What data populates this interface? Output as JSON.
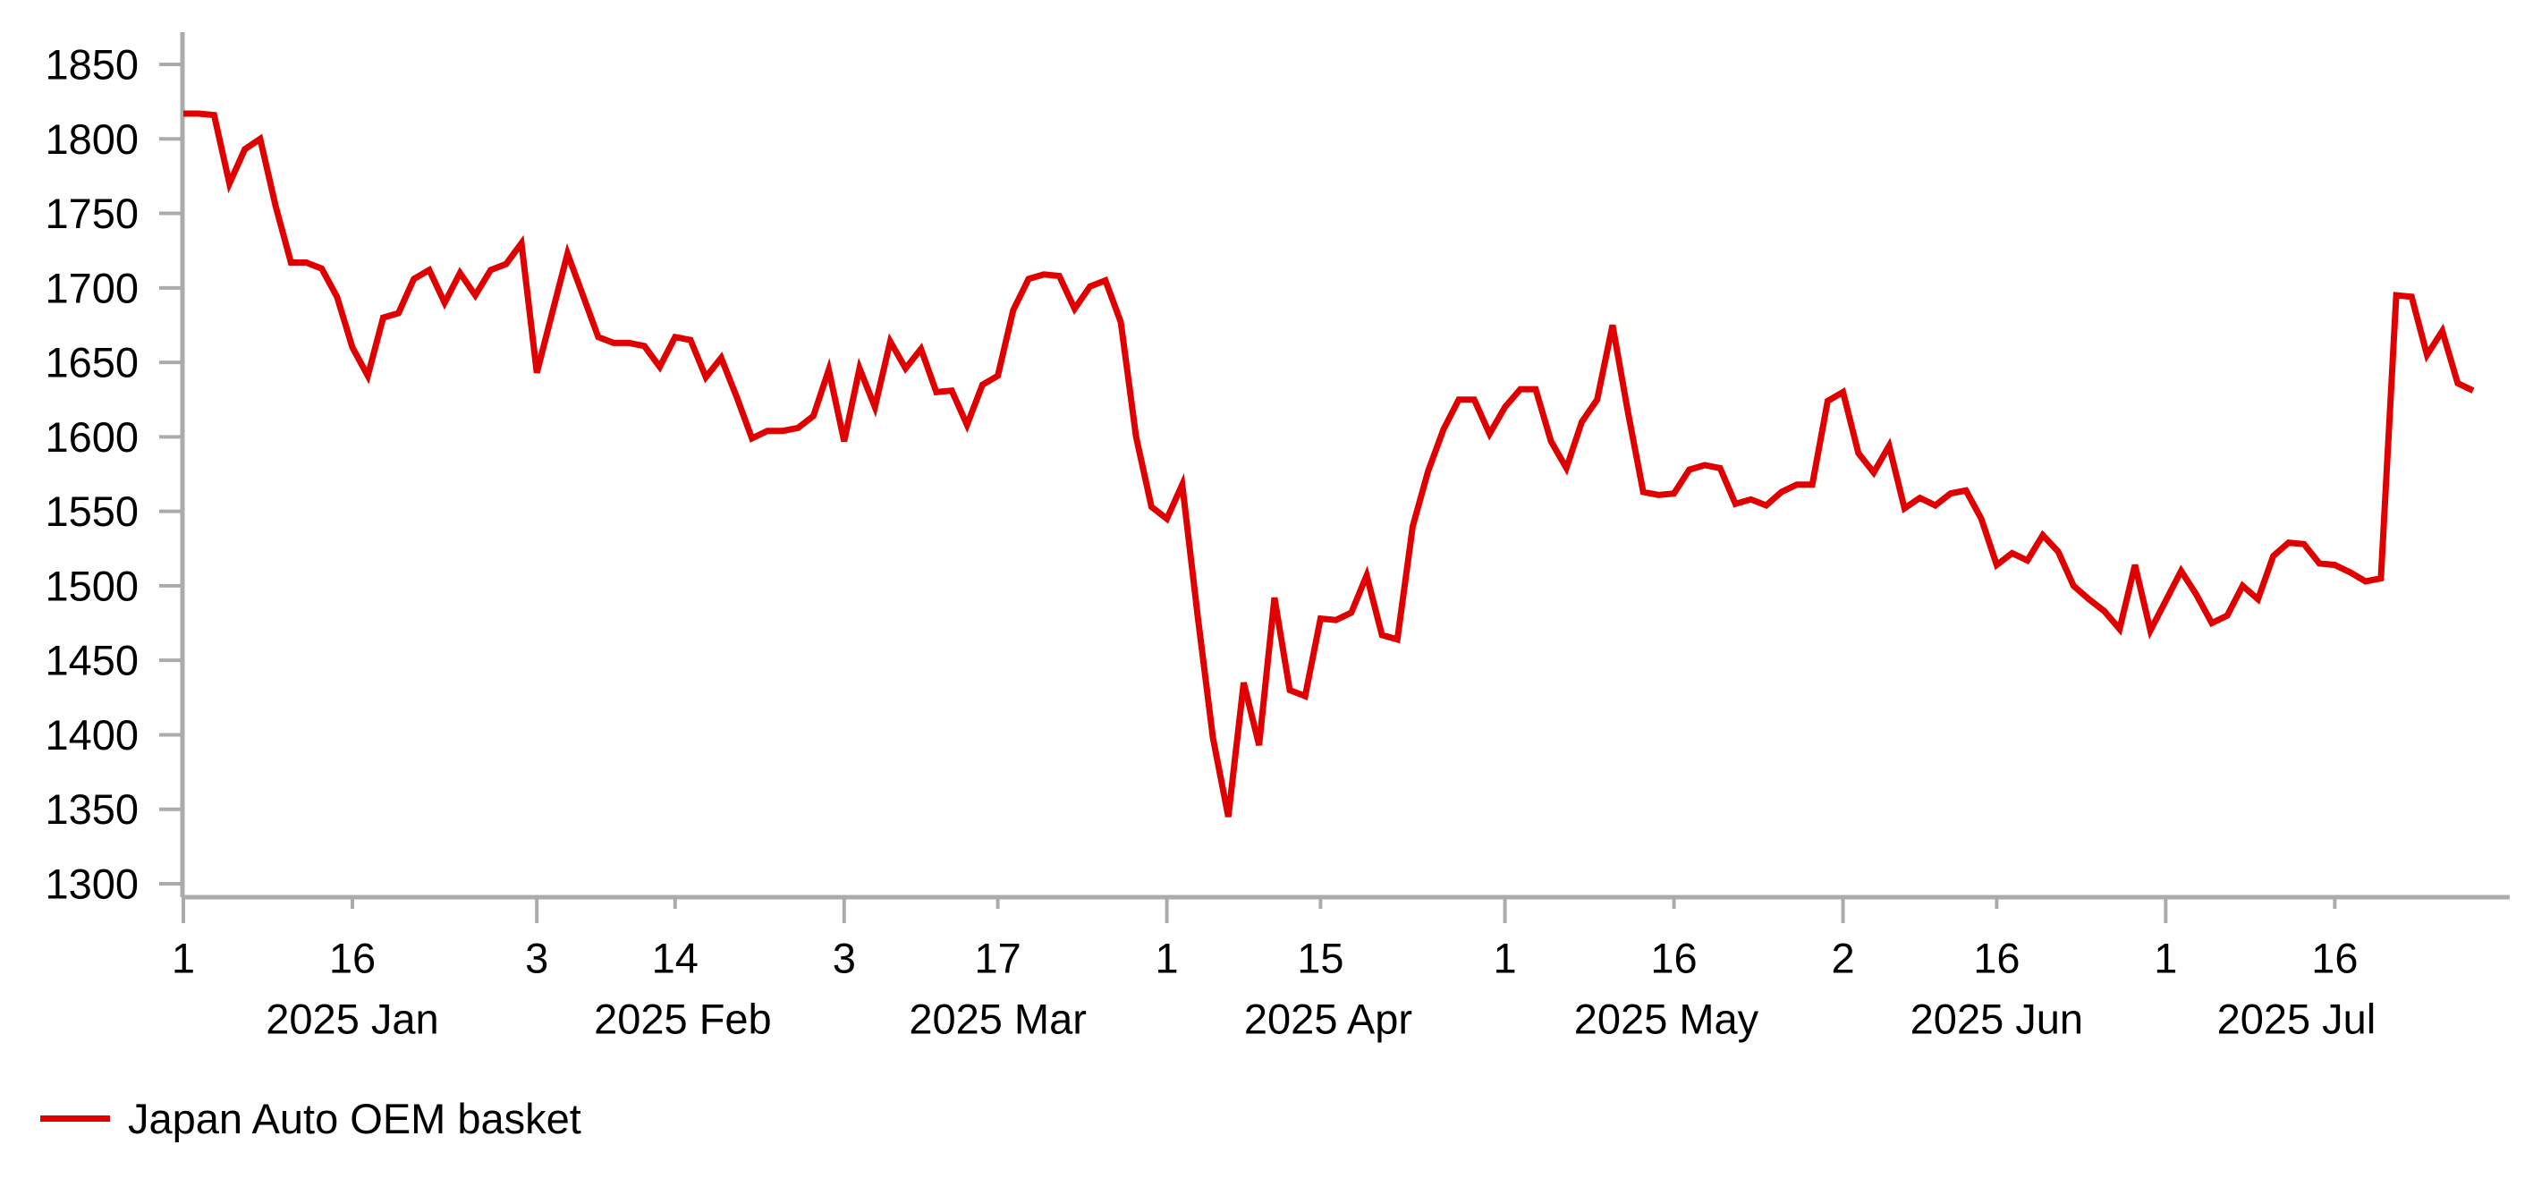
{
  "legend": {
    "label": "Japan Auto OEM basket"
  },
  "chart_data": {
    "type": "line",
    "title": "",
    "grid": false,
    "legend_position": "bottom-left",
    "background": "#FFFFFF",
    "axis_color": "#ABABAB",
    "text_color": "#000000",
    "ylabel": "",
    "xlabel": "",
    "ylim": [
      1300,
      1850
    ],
    "y_ticks": [
      1300,
      1350,
      1400,
      1450,
      1500,
      1550,
      1600,
      1650,
      1700,
      1750,
      1800,
      1850
    ],
    "x_ticks": [
      {
        "label": "1",
        "index": 0,
        "major": true
      },
      {
        "label": "16",
        "index": 11,
        "major": false
      },
      {
        "label": "3",
        "index": 23,
        "major": true
      },
      {
        "label": "14",
        "index": 32,
        "major": false
      },
      {
        "label": "3",
        "index": 43,
        "major": true
      },
      {
        "label": "17",
        "index": 53,
        "major": false
      },
      {
        "label": "1",
        "index": 64,
        "major": true
      },
      {
        "label": "15",
        "index": 74,
        "major": false
      },
      {
        "label": "1",
        "index": 86,
        "major": true
      },
      {
        "label": "16",
        "index": 97,
        "major": false
      },
      {
        "label": "2",
        "index": 108,
        "major": true
      },
      {
        "label": "16",
        "index": 118,
        "major": false
      },
      {
        "label": "1",
        "index": 129,
        "major": true
      },
      {
        "label": "16",
        "index": 140,
        "major": false
      }
    ],
    "x_month_labels": [
      {
        "label": "2025 Jan",
        "center_index": 11
      },
      {
        "label": "2025 Feb",
        "center_index": 32.5
      },
      {
        "label": "2025 Mar",
        "center_index": 53
      },
      {
        "label": "2025 Apr",
        "center_index": 74.5
      },
      {
        "label": "2025 May",
        "center_index": 96.5
      },
      {
        "label": "2025 Jun",
        "center_index": 118
      },
      {
        "label": "2025 Jul",
        "center_index": 137.5
      }
    ],
    "series": [
      {
        "name": "Japan Auto OEM basket",
        "color": "#E00000",
        "dates": [
          "2025-01-01",
          "2025-01-02",
          "2025-01-03",
          "2025-01-06",
          "2025-01-07",
          "2025-01-08",
          "2025-01-09",
          "2025-01-10",
          "2025-01-13",
          "2025-01-14",
          "2025-01-15",
          "2025-01-16",
          "2025-01-17",
          "2025-01-20",
          "2025-01-21",
          "2025-01-22",
          "2025-01-23",
          "2025-01-24",
          "2025-01-27",
          "2025-01-28",
          "2025-01-29",
          "2025-01-30",
          "2025-01-31",
          "2025-02-03",
          "2025-02-04",
          "2025-02-05",
          "2025-02-06",
          "2025-02-07",
          "2025-02-10",
          "2025-02-11",
          "2025-02-12",
          "2025-02-13",
          "2025-02-14",
          "2025-02-17",
          "2025-02-18",
          "2025-02-19",
          "2025-02-20",
          "2025-02-21",
          "2025-02-24",
          "2025-02-25",
          "2025-02-26",
          "2025-02-27",
          "2025-02-28",
          "2025-03-03",
          "2025-03-04",
          "2025-03-05",
          "2025-03-06",
          "2025-03-07",
          "2025-03-10",
          "2025-03-11",
          "2025-03-12",
          "2025-03-13",
          "2025-03-14",
          "2025-03-17",
          "2025-03-18",
          "2025-03-19",
          "2025-03-20",
          "2025-03-21",
          "2025-03-24",
          "2025-03-25",
          "2025-03-26",
          "2025-03-27",
          "2025-03-28",
          "2025-03-31",
          "2025-04-01",
          "2025-04-02",
          "2025-04-03",
          "2025-04-04",
          "2025-04-07",
          "2025-04-08",
          "2025-04-09",
          "2025-04-10",
          "2025-04-11",
          "2025-04-14",
          "2025-04-15",
          "2025-04-16",
          "2025-04-17",
          "2025-04-18",
          "2025-04-21",
          "2025-04-22",
          "2025-04-23",
          "2025-04-24",
          "2025-04-25",
          "2025-04-28",
          "2025-04-29",
          "2025-04-30",
          "2025-05-01",
          "2025-05-02",
          "2025-05-05",
          "2025-05-06",
          "2025-05-07",
          "2025-05-08",
          "2025-05-09",
          "2025-05-12",
          "2025-05-13",
          "2025-05-14",
          "2025-05-15",
          "2025-05-16",
          "2025-05-19",
          "2025-05-20",
          "2025-05-21",
          "2025-05-22",
          "2025-05-23",
          "2025-05-26",
          "2025-05-27",
          "2025-05-28",
          "2025-05-29",
          "2025-05-30",
          "2025-06-02",
          "2025-06-03",
          "2025-06-04",
          "2025-06-05",
          "2025-06-06",
          "2025-06-09",
          "2025-06-10",
          "2025-06-11",
          "2025-06-12",
          "2025-06-13",
          "2025-06-16",
          "2025-06-17",
          "2025-06-18",
          "2025-06-19",
          "2025-06-20",
          "2025-06-23",
          "2025-06-24",
          "2025-06-25",
          "2025-06-26",
          "2025-06-27",
          "2025-06-30",
          "2025-07-01",
          "2025-07-02",
          "2025-07-03",
          "2025-07-04",
          "2025-07-07",
          "2025-07-08",
          "2025-07-09",
          "2025-07-10",
          "2025-07-11",
          "2025-07-14",
          "2025-07-15",
          "2025-07-16",
          "2025-07-17",
          "2025-07-18",
          "2025-07-21",
          "2025-07-22",
          "2025-07-23",
          "2025-07-24",
          "2025-07-25",
          "2025-07-28",
          "2025-07-29"
        ],
        "values": [
          1817,
          1817,
          1816,
          1770,
          1793,
          1800,
          1755,
          1717,
          1717,
          1713,
          1694,
          1660,
          1641,
          1680,
          1683,
          1706,
          1712,
          1690,
          1710,
          1695,
          1712,
          1716,
          1730,
          1643,
          1683,
          1723,
          1695,
          1667,
          1663,
          1663,
          1661,
          1647,
          1667,
          1665,
          1640,
          1653,
          1627,
          1599,
          1604,
          1604,
          1606,
          1614,
          1645,
          1597,
          1646,
          1620,
          1664,
          1646,
          1659,
          1630,
          1631,
          1608,
          1635,
          1641,
          1685,
          1706,
          1709,
          1708,
          1686,
          1701,
          1705,
          1677,
          1600,
          1553,
          1545,
          1568,
          1480,
          1398,
          1345,
          1435,
          1393,
          1492,
          1430,
          1426,
          1478,
          1477,
          1482,
          1507,
          1467,
          1464,
          1540,
          1577,
          1605,
          1625,
          1625,
          1602,
          1620,
          1632,
          1632,
          1597,
          1579,
          1610,
          1625,
          1675,
          1617,
          1563,
          1561,
          1562,
          1578,
          1581,
          1579,
          1555,
          1558,
          1554,
          1563,
          1568,
          1568,
          1624,
          1630,
          1589,
          1576,
          1594,
          1552,
          1559,
          1554,
          1562,
          1564,
          1545,
          1514,
          1522,
          1517,
          1534,
          1523,
          1500,
          1491,
          1483,
          1471,
          1514,
          1470,
          1490,
          1510,
          1494,
          1475,
          1480,
          1500,
          1491,
          1520,
          1529,
          1528,
          1515,
          1514,
          1509,
          1503,
          1505,
          1695,
          1694,
          1655,
          1671,
          1636,
          1631
        ]
      }
    ]
  }
}
